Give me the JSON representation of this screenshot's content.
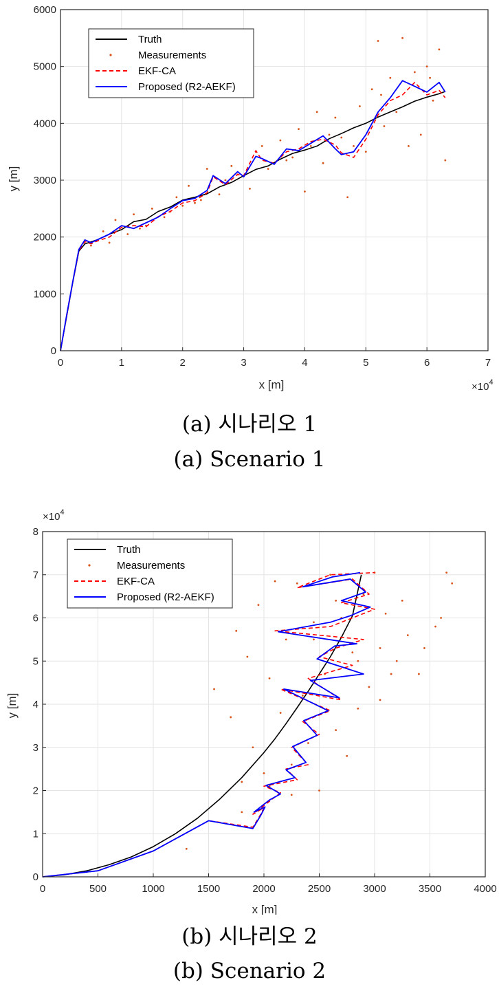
{
  "captions": {
    "a_korean": "(a)  시나리오  1",
    "a_english": "(a)  Scenario  1",
    "b_korean": "(b)  시나리오  2",
    "b_english": "(b)  Scenario  2"
  },
  "colors": {
    "truth": "#000000",
    "measurements": "#d95319",
    "ekf": "#ff0000",
    "proposed": "#0000ff",
    "grid": "#e3e3e3",
    "axis": "#262626"
  },
  "chart_data": [
    {
      "type": "line",
      "title": "",
      "xlabel": "x [m]",
      "ylabel": "y [m]",
      "x_multiplier": "×10",
      "x_multiplier_exp": "4",
      "xlim": [
        0,
        7
      ],
      "ylim": [
        0,
        6000
      ],
      "xticks": [
        0,
        1,
        2,
        3,
        4,
        5,
        6,
        7
      ],
      "yticks": [
        0,
        1000,
        2000,
        3000,
        4000,
        5000,
        6000
      ],
      "grid": true,
      "legend_position": "top-left",
      "legend": [
        "Truth",
        "Measurements",
        "EKF-CA",
        "Proposed (R2-AEKF)"
      ],
      "series": [
        {
          "name": "Truth",
          "style": "solid",
          "x": [
            0,
            0.1,
            0.2,
            0.3,
            0.4,
            0.6,
            0.8,
            1.0,
            1.2,
            1.4,
            1.6,
            1.8,
            2.0,
            2.2,
            2.4,
            2.6,
            2.8,
            3.0,
            3.2,
            3.4,
            3.6,
            3.8,
            4.0,
            4.2,
            4.4,
            4.6,
            4.8,
            5.0,
            5.2,
            5.4,
            5.6,
            5.8,
            6.0,
            6.2,
            6.3
          ],
          "y": [
            0,
            600,
            1200,
            1750,
            1880,
            1950,
            2050,
            2130,
            2270,
            2310,
            2450,
            2530,
            2650,
            2700,
            2760,
            2880,
            2960,
            3080,
            3190,
            3250,
            3370,
            3470,
            3530,
            3600,
            3730,
            3820,
            3920,
            4000,
            4110,
            4200,
            4290,
            4390,
            4460,
            4520,
            4560
          ]
        },
        {
          "name": "EKF-CA",
          "style": "dashed",
          "x": [
            0,
            0.1,
            0.2,
            0.3,
            0.4,
            0.5,
            0.6,
            0.8,
            1.0,
            1.2,
            1.4,
            1.6,
            1.8,
            2.0,
            2.2,
            2.4,
            2.5,
            2.7,
            2.9,
            3.0,
            3.2,
            3.3,
            3.5,
            3.7,
            3.9,
            4.1,
            4.3,
            4.5,
            4.6,
            4.8,
            5.0,
            5.2,
            5.4,
            5.6,
            5.8,
            6.0,
            6.2,
            6.3
          ],
          "y": [
            0,
            600,
            1200,
            1760,
            1920,
            1880,
            1930,
            2000,
            2170,
            2200,
            2180,
            2360,
            2450,
            2600,
            2640,
            2780,
            3060,
            2920,
            3100,
            3080,
            3520,
            3350,
            3300,
            3500,
            3550,
            3680,
            3720,
            3620,
            3480,
            3400,
            3720,
            4150,
            4400,
            4500,
            4720,
            4500,
            4580,
            4450
          ]
        },
        {
          "name": "Proposed (R2-AEKF)",
          "style": "solid",
          "x": [
            0,
            0.1,
            0.2,
            0.3,
            0.4,
            0.5,
            0.6,
            0.8,
            1.0,
            1.2,
            1.4,
            1.6,
            1.8,
            2.0,
            2.2,
            2.4,
            2.5,
            2.7,
            2.9,
            3.0,
            3.2,
            3.3,
            3.5,
            3.7,
            3.9,
            4.1,
            4.3,
            4.5,
            4.6,
            4.8,
            5.0,
            5.2,
            5.4,
            5.6,
            5.8,
            6.0,
            6.2,
            6.3
          ],
          "y": [
            0,
            620,
            1210,
            1780,
            1950,
            1900,
            1950,
            2050,
            2200,
            2150,
            2250,
            2350,
            2500,
            2640,
            2680,
            2820,
            3080,
            2940,
            3150,
            3060,
            3420,
            3380,
            3280,
            3550,
            3520,
            3650,
            3780,
            3550,
            3450,
            3500,
            3800,
            4200,
            4450,
            4750,
            4650,
            4550,
            4720,
            4550
          ]
        }
      ],
      "measurements": {
        "x": [
          0.5,
          0.7,
          0.9,
          1.1,
          1.2,
          1.4,
          1.5,
          1.7,
          1.9,
          2.0,
          2.1,
          2.3,
          2.4,
          2.6,
          2.7,
          2.9,
          3.1,
          3.2,
          3.4,
          3.6,
          3.7,
          3.9,
          4.0,
          4.1,
          4.2,
          4.3,
          4.4,
          4.5,
          4.7,
          4.8,
          4.9,
          5.0,
          5.1,
          5.2,
          5.3,
          5.4,
          5.5,
          5.6,
          5.7,
          5.8,
          5.9,
          6.0,
          6.1,
          6.2,
          6.3,
          0.8,
          1.3,
          1.8,
          2.2,
          2.8,
          3.3,
          3.8,
          4.6,
          5.25,
          6.05
        ],
        "y": [
          1850,
          2100,
          2300,
          2050,
          2400,
          2200,
          2500,
          2350,
          2700,
          2550,
          2900,
          2650,
          3200,
          2750,
          3000,
          3100,
          2850,
          3500,
          3200,
          3700,
          3350,
          3900,
          2800,
          3600,
          4200,
          3300,
          3800,
          4100,
          2700,
          3600,
          4300,
          3500,
          4600,
          5450,
          3950,
          4800,
          4200,
          5500,
          3600,
          4900,
          3800,
          5000,
          4400,
          5300,
          3350,
          1900,
          2150,
          2450,
          2600,
          3250,
          3600,
          3400,
          3750,
          4500,
          4800
        ]
      }
    },
    {
      "type": "line",
      "title": "",
      "xlabel": "x [m]",
      "ylabel": "y [m]",
      "y_multiplier": "×10",
      "y_multiplier_exp": "4",
      "xlim": [
        0,
        4000
      ],
      "ylim": [
        0,
        8
      ],
      "xticks": [
        0,
        500,
        1000,
        1500,
        2000,
        2500,
        3000,
        3500,
        4000
      ],
      "yticks": [
        0,
        1,
        2,
        3,
        4,
        5,
        6,
        7,
        8
      ],
      "grid": true,
      "legend_position": "top-left",
      "legend": [
        "Truth",
        "Measurements",
        "EKF-CA",
        "Proposed (R2-AEKF)"
      ],
      "series": [
        {
          "name": "Truth",
          "style": "solid",
          "x": [
            0,
            200,
            400,
            600,
            800,
            1000,
            1200,
            1400,
            1600,
            1800,
            2000,
            2100,
            2200,
            2300,
            2400,
            2500,
            2600,
            2700,
            2800,
            2880
          ],
          "y": [
            0,
            0.05,
            0.14,
            0.28,
            0.46,
            0.7,
            1.0,
            1.36,
            1.8,
            2.3,
            2.88,
            3.2,
            3.55,
            3.92,
            4.3,
            4.7,
            5.1,
            5.55,
            6.05,
            7.0
          ]
        },
        {
          "name": "EKF-CA",
          "style": "dashed",
          "x": [
            0,
            500,
            1000,
            1500,
            1900,
            1960,
            2000,
            1900,
            2050,
            2150,
            2000,
            2300,
            2200,
            2400,
            2250,
            2500,
            2350,
            2600,
            2150,
            2700,
            2400,
            2800,
            2500,
            2650,
            2900,
            2100,
            2600,
            2800,
            3000,
            2700,
            2950,
            2800,
            2300,
            2600,
            3000
          ],
          "y": [
            0,
            0.14,
            0.6,
            1.3,
            1.15,
            1.4,
            1.6,
            1.45,
            1.75,
            1.95,
            2.1,
            2.25,
            2.5,
            2.6,
            3.0,
            3.3,
            3.6,
            3.85,
            4.35,
            4.1,
            4.6,
            4.9,
            5.1,
            5.3,
            5.5,
            5.7,
            5.8,
            6.0,
            6.2,
            6.35,
            6.55,
            6.9,
            6.7,
            7.0,
            7.05
          ]
        },
        {
          "name": "Proposed (R2-AEKF)",
          "style": "solid",
          "x": [
            0,
            500,
            1000,
            1500,
            1900,
            1970,
            2010,
            1910,
            2050,
            2150,
            2020,
            2280,
            2200,
            2380,
            2260,
            2480,
            2360,
            2580,
            2180,
            2680,
            2420,
            2900,
            2480,
            2640,
            2840,
            2130,
            2600,
            2780,
            2960,
            2700,
            2920,
            2780,
            2350,
            2620,
            2870
          ],
          "y": [
            0,
            0.14,
            0.6,
            1.3,
            1.12,
            1.42,
            1.62,
            1.5,
            1.78,
            1.92,
            2.12,
            2.3,
            2.48,
            2.65,
            3.02,
            3.28,
            3.62,
            3.85,
            4.35,
            4.15,
            4.55,
            4.7,
            5.05,
            5.35,
            5.4,
            5.68,
            5.9,
            6.05,
            6.25,
            6.4,
            6.6,
            6.9,
            6.72,
            6.95,
            7.05
          ]
        }
      ],
      "measurements": {
        "x": [
          1300,
          1550,
          1700,
          1750,
          1800,
          1850,
          1900,
          1950,
          2000,
          2050,
          2100,
          2150,
          2200,
          2250,
          2300,
          2350,
          2400,
          2450,
          2500,
          2550,
          2600,
          2650,
          2700,
          2750,
          2800,
          2850,
          2900,
          2950,
          3000,
          3050,
          3100,
          3150,
          3200,
          3300,
          3400,
          3450,
          3550,
          3650,
          3700,
          1800,
          2050,
          2250,
          2450,
          2650,
          2850,
          3050,
          3250,
          3600
        ],
        "y": [
          0.65,
          4.35,
          3.7,
          5.7,
          2.2,
          5.1,
          3.0,
          6.3,
          2.4,
          4.6,
          6.85,
          3.8,
          5.5,
          2.6,
          6.8,
          4.2,
          3.1,
          5.9,
          2.0,
          4.7,
          7.0,
          3.4,
          6.0,
          2.8,
          5.2,
          3.9,
          6.55,
          4.4,
          7.05,
          5.3,
          6.1,
          4.7,
          5.0,
          5.6,
          4.7,
          5.3,
          5.8,
          7.05,
          6.8,
          1.5,
          2.1,
          1.9,
          5.5,
          6.4,
          5.0,
          4.1,
          6.4,
          6.0
        ]
      }
    }
  ]
}
